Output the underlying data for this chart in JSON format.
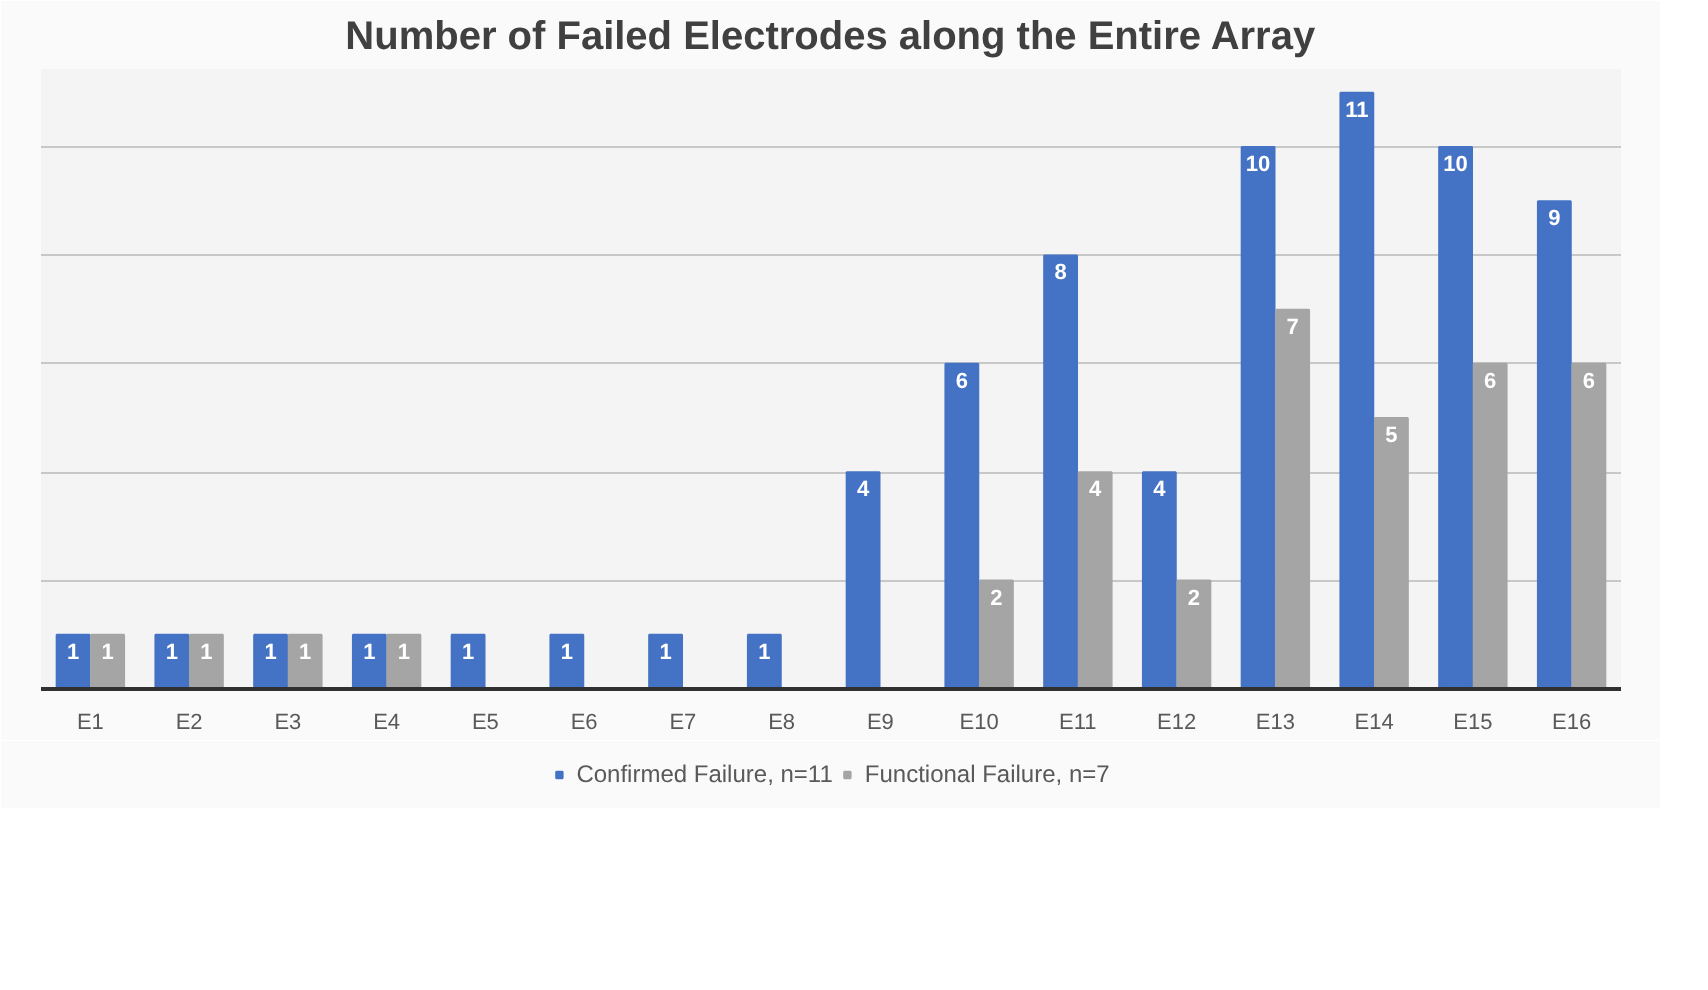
{
  "chart_data": {
    "type": "bar",
    "title": "Number of Failed Electrodes along the Entire Array",
    "categories": [
      "E1",
      "E2",
      "E3",
      "E4",
      "E5",
      "E6",
      "E7",
      "E8",
      "E9",
      "E10",
      "E11",
      "E12",
      "E13",
      "E14",
      "E15",
      "E16"
    ],
    "series": [
      {
        "name": "Confirmed Failure, n=11",
        "color": "#4472c4",
        "values": [
          1,
          1,
          1,
          1,
          1,
          1,
          1,
          1,
          4,
          6,
          8,
          4,
          10,
          11,
          10,
          9
        ],
        "value_labels": [
          "1",
          "1",
          "1",
          "1",
          "1",
          "1",
          "1",
          "1",
          "4",
          "6",
          "8",
          "4",
          "10",
          "11",
          "10",
          "9"
        ]
      },
      {
        "name": "Functional Failure, n=7",
        "color": "#a5a5a5",
        "values": [
          1,
          1,
          1,
          1,
          null,
          null,
          null,
          null,
          null,
          2,
          4,
          2,
          7,
          5,
          6,
          6
        ],
        "value_labels": [
          "1",
          "1",
          "1",
          "1",
          null,
          null,
          null,
          null,
          null,
          "2",
          "4",
          "2",
          "7",
          "5",
          "6",
          "6"
        ]
      }
    ],
    "yticks": [
      {
        "value": 2,
        "label": null
      },
      {
        "value": 4,
        "label": null
      },
      {
        "value": 6,
        "label": null
      },
      {
        "value": 8,
        "label": null
      },
      {
        "value": 10,
        "label": null
      }
    ],
    "grid": "y",
    "tick_labels": "x",
    "legend": "bottom"
  }
}
